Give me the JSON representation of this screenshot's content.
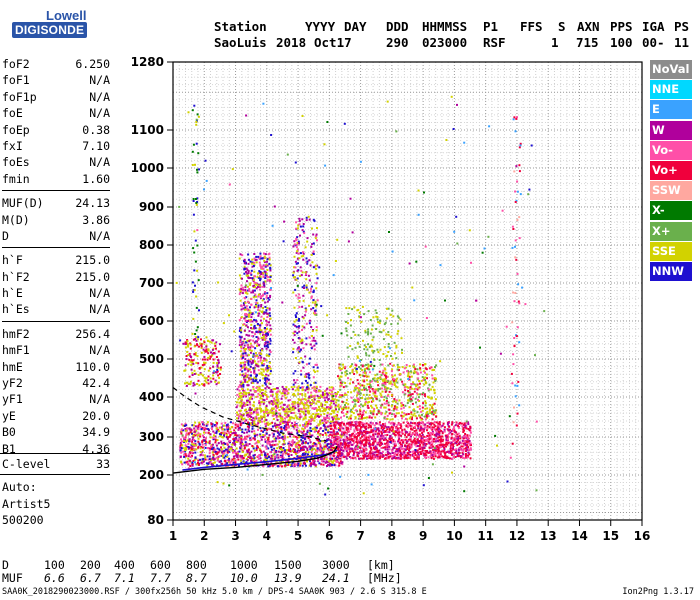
{
  "logo": {
    "line1": "Lowell",
    "line2": "DIGISONDE"
  },
  "header": {
    "labels": [
      "Station",
      "YYYY",
      "DAY",
      "DDD",
      "HHMMSS",
      "P1",
      "FFS",
      "S",
      "AXN",
      "PPS",
      "IGA",
      "PS"
    ],
    "values": [
      "SaoLuis",
      "2018",
      "Oct17",
      "290",
      "023000",
      "RSF",
      "1",
      "715",
      "100",
      "00-",
      "11"
    ]
  },
  "params": [
    [
      {
        "name": "foF2",
        "value": "6.250"
      },
      {
        "name": "foF1",
        "value": "N/A"
      },
      {
        "name": "foF1p",
        "value": "N/A"
      },
      {
        "name": "foE",
        "value": "N/A"
      },
      {
        "name": "foEp",
        "value": "0.38"
      },
      {
        "name": "fxI",
        "value": "7.10"
      },
      {
        "name": "foEs",
        "value": "N/A"
      },
      {
        "name": "fmin",
        "value": "1.60"
      }
    ],
    [
      {
        "name": "MUF(D)",
        "value": "24.13"
      },
      {
        "name": "M(D)",
        "value": "3.86"
      },
      {
        "name": "D",
        "value": "N/A"
      }
    ],
    [
      {
        "name": "h`F",
        "value": "215.0"
      },
      {
        "name": "h`F2",
        "value": "215.0"
      },
      {
        "name": "h`E",
        "value": "N/A"
      },
      {
        "name": "h`Es",
        "value": "N/A"
      }
    ],
    [
      {
        "name": "hmF2",
        "value": "256.4"
      },
      {
        "name": "hmF1",
        "value": "N/A"
      },
      {
        "name": "hmE",
        "value": "110.0"
      },
      {
        "name": "yF2",
        "value": "42.4"
      },
      {
        "name": "yF1",
        "value": "N/A"
      },
      {
        "name": "yE",
        "value": "20.0"
      },
      {
        "name": "B0",
        "value": "34.9"
      },
      {
        "name": "B1",
        "value": "4.36"
      }
    ]
  ],
  "clevel": {
    "name": "C-level",
    "value": "33"
  },
  "auto": [
    "Auto:",
    "Artist5",
    "500200"
  ],
  "legend": [
    {
      "label": "NoVal",
      "color": "#8c8c8c"
    },
    {
      "label": "NNE",
      "color": "#00d8ff"
    },
    {
      "label": "E",
      "color": "#3aa2ff"
    },
    {
      "label": "W",
      "color": "#b0009c"
    },
    {
      "label": "Vo-",
      "color": "#ff4fa8"
    },
    {
      "label": "Vo+",
      "color": "#f0003c"
    },
    {
      "label": "SSW",
      "color": "#ffa8a0"
    },
    {
      "label": "X-",
      "color": "#007a00"
    },
    {
      "label": "X+",
      "color": "#6ab04c"
    },
    {
      "label": "SSE",
      "color": "#d2d200"
    },
    {
      "label": "NNW",
      "color": "#1e10d0"
    }
  ],
  "dmuf": {
    "d_label": "D",
    "d_values": [
      "100",
      "200",
      "400",
      "600",
      "800",
      "1000",
      "1500",
      "3000"
    ],
    "d_unit": "[km]",
    "muf_label": "MUF",
    "muf_values": [
      "6.6",
      "6.7",
      "7.1",
      "7.7",
      "8.7",
      "10.0",
      "13.9",
      "24.1"
    ],
    "muf_unit": "[MHz]"
  },
  "footer": "SAA0K_2018290023000.RSF / 300fx256h 50 kHz 5.0 km / DPS-4 SAA0K 903 / 2.6 S 315.8 E",
  "version": "Ion2Png 1.3.17",
  "chart_data": {
    "type": "scatter",
    "title": "",
    "xlabel": "",
    "ylabel": "",
    "xlim": [
      1,
      16
    ],
    "ylim": [
      80,
      1280
    ],
    "x_scale": "log-like virtual height axis",
    "x_ticks": [
      "1",
      "2",
      "3",
      "4",
      "5",
      "6",
      "7",
      "8",
      "9",
      "10",
      "11",
      "12",
      "13",
      "14",
      "15",
      "16"
    ],
    "y_ticks": [
      "80",
      "200",
      "300",
      "400",
      "500",
      "600",
      "700",
      "800",
      "900",
      "1000",
      "1100",
      "1280"
    ],
    "y_tick_values": [
      80,
      200,
      300,
      400,
      500,
      600,
      700,
      800,
      900,
      1000,
      1100,
      1280
    ],
    "grid": true,
    "legend_position": "right",
    "clusters": [
      {
        "x": [
          1.2,
          6.4
        ],
        "y": [
          225,
          340
        ],
        "n": 1500,
        "colors": [
          "#f0003c",
          "#b0009c",
          "#ff4fa8",
          "#d2d200",
          "#1e10d0"
        ]
      },
      {
        "x": [
          6.0,
          10.5
        ],
        "y": [
          245,
          340
        ],
        "n": 1500,
        "colors": [
          "#f0003c",
          "#f0003c",
          "#ff4fa8",
          "#b0009c"
        ]
      },
      {
        "x": [
          6.2,
          9.4
        ],
        "y": [
          345,
          490
        ],
        "n": 700,
        "colors": [
          "#d2d200",
          "#d2d200",
          "#f0003c",
          "#6ab04c",
          "#ff4fa8"
        ]
      },
      {
        "x": [
          3.0,
          6.2
        ],
        "y": [
          340,
          430
        ],
        "n": 700,
        "colors": [
          "#d2d200",
          "#d2d200",
          "#b0009c",
          "#ff4fa8"
        ]
      },
      {
        "x": [
          3.1,
          4.1
        ],
        "y": [
          430,
          780
        ],
        "n": 700,
        "colors": [
          "#b0009c",
          "#d2d200",
          "#ff4fa8",
          "#1e10d0"
        ]
      },
      {
        "x": [
          4.8,
          5.6
        ],
        "y": [
          420,
          880
        ],
        "n": 280,
        "colors": [
          "#b0009c",
          "#d2d200",
          "#1e10d0",
          "#ff4fa8"
        ]
      },
      {
        "x": [
          1.3,
          2.5
        ],
        "y": [
          430,
          560
        ],
        "n": 180,
        "colors": [
          "#d2d200",
          "#f0003c",
          "#b0009c"
        ]
      },
      {
        "x": [
          6.5,
          8.3
        ],
        "y": [
          500,
          640
        ],
        "n": 120,
        "colors": [
          "#d2d200",
          "#6ab04c"
        ]
      },
      {
        "x": [
          1.6,
          1.8
        ],
        "y": [
          560,
          1180
        ],
        "n": 45,
        "colors": [
          "#d2d200",
          "#1e10d0",
          "#007a00"
        ]
      },
      {
        "x": [
          11.8,
          12.1
        ],
        "y": [
          260,
          1140
        ],
        "n": 55,
        "colors": [
          "#ff4fa8",
          "#3aa2ff",
          "#ffa8a0",
          "#f0003c"
        ]
      },
      {
        "x": [
          1.0,
          13.0
        ],
        "y": [
          150,
          1200
        ],
        "n": 170,
        "colors": [
          "#d2d200",
          "#b0009c",
          "#1e10d0",
          "#3aa2ff",
          "#007a00",
          "#ff4fa8",
          "#6ab04c"
        ]
      }
    ],
    "profile": {
      "x": [
        1.0,
        1.5,
        2.0,
        3.0,
        4.0,
        5.0,
        5.6,
        5.9,
        6.15,
        6.25
      ],
      "y": [
        205,
        210,
        215,
        220,
        228,
        236,
        244,
        252,
        262,
        275
      ]
    },
    "trace": {
      "x": [
        1.3,
        2.0,
        3.0,
        4.0,
        5.0,
        6.0,
        6.25
      ],
      "y": [
        213,
        220,
        228,
        235,
        244,
        255,
        265
      ]
    },
    "extrapolation": {
      "x": [
        1.0,
        1.4,
        1.9,
        2.6,
        3.5,
        4.5,
        5.4,
        5.9
      ],
      "y": [
        425,
        400,
        375,
        350,
        330,
        310,
        300,
        290
      ]
    }
  }
}
